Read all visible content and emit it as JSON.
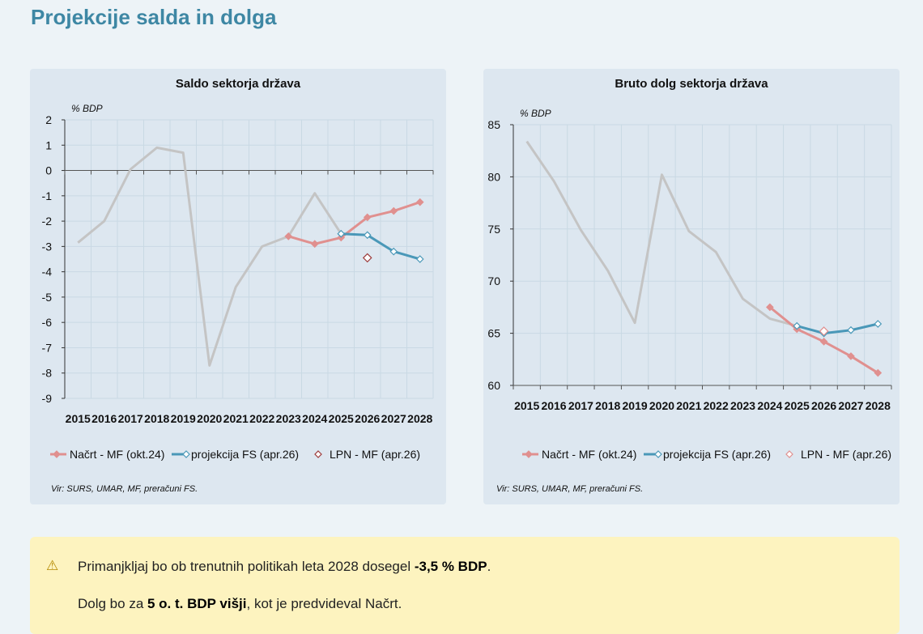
{
  "page_title": "Projekcije salda in dolga",
  "chart_data": [
    {
      "type": "line",
      "title": "Saldo sektorja država",
      "ylabel": "% BDP",
      "ylim": [
        -9,
        2
      ],
      "yticks": [
        2,
        1,
        0,
        -1,
        -2,
        -3,
        -4,
        -5,
        -6,
        -7,
        -8,
        -9
      ],
      "categories": [
        "2015",
        "2016",
        "2017",
        "2018",
        "2019",
        "2020",
        "2021",
        "2022",
        "2023",
        "2024",
        "2025",
        "2026",
        "2027",
        "2028"
      ],
      "grid": true,
      "legend_position": "bottom",
      "source": "Vir: SURS, UMAR, MF, preračuni FS.",
      "series": [
        {
          "values": [
            -2.85,
            -2.0,
            0.05,
            0.9,
            0.7,
            -7.7,
            -4.6,
            -3.0,
            -2.6,
            -0.9,
            -2.5,
            null,
            null,
            null
          ],
          "color": "#c4c4c4"
        },
        {
          "name": "Načrt - MF (okt.24)",
          "values": [
            null,
            null,
            null,
            null,
            null,
            null,
            null,
            null,
            -2.6,
            -2.9,
            -2.65,
            -1.85,
            -1.6,
            -1.25
          ],
          "color": "#e0908f",
          "marker": "filled-diamond"
        },
        {
          "name": "projekcija FS (apr.26)",
          "values": [
            null,
            null,
            null,
            null,
            null,
            null,
            null,
            null,
            null,
            null,
            -2.5,
            -2.55,
            -3.2,
            -3.5
          ],
          "color": "#4a98b8",
          "marker": "open-diamond"
        },
        {
          "name": "LPN - MF (apr.26)",
          "values": [
            null,
            null,
            null,
            null,
            null,
            null,
            null,
            null,
            null,
            null,
            null,
            -3.45,
            null,
            null
          ],
          "color": "#9c3a3a",
          "marker": "open-diamond-only"
        }
      ]
    },
    {
      "type": "line",
      "title": "Bruto dolg sektorja država",
      "ylabel": "% BDP",
      "ylim": [
        60,
        85
      ],
      "yticks": [
        85,
        80,
        75,
        70,
        65,
        60
      ],
      "categories": [
        "2015",
        "2016",
        "2017",
        "2018",
        "2019",
        "2020",
        "2021",
        "2022",
        "2023",
        "2024",
        "2025",
        "2026",
        "2027",
        "2028"
      ],
      "grid": true,
      "legend_position": "bottom",
      "source": "Vir: SURS, UMAR, MF, preračuni FS.",
      "series": [
        {
          "values": [
            83.4,
            79.6,
            74.9,
            71.0,
            66.0,
            80.2,
            74.8,
            72.8,
            68.3,
            66.4,
            65.7,
            null,
            null,
            null
          ],
          "color": "#c4c4c4"
        },
        {
          "name": "Načrt - MF (okt.24)",
          "values": [
            null,
            null,
            null,
            null,
            null,
            null,
            null,
            null,
            null,
            67.5,
            65.4,
            64.2,
            62.8,
            61.2
          ],
          "color": "#e0908f",
          "marker": "filled-diamond"
        },
        {
          "name": "projekcija FS (apr.26)",
          "values": [
            null,
            null,
            null,
            null,
            null,
            null,
            null,
            null,
            null,
            null,
            65.7,
            65.0,
            65.3,
            65.9
          ],
          "color": "#4a98b8",
          "marker": "open-diamond"
        },
        {
          "name": "LPN - MF (apr.26)",
          "values": [
            null,
            null,
            null,
            null,
            null,
            null,
            null,
            null,
            null,
            null,
            null,
            65.2,
            null,
            null
          ],
          "color": "#e0908f",
          "marker": "open-diamond-only"
        }
      ]
    }
  ],
  "alert": {
    "icon": "warning-icon",
    "line1_pre": "Primanjkljaj bo ob trenutnih politikah leta 2028 dosegel ",
    "line1_bold": "-3,5 % BDP",
    "line1_post": ".",
    "line2_pre": "Dolg bo za ",
    "line2_bold": "5 o. t. BDP višji",
    "line2_post": ", kot je predvideval Načrt."
  }
}
